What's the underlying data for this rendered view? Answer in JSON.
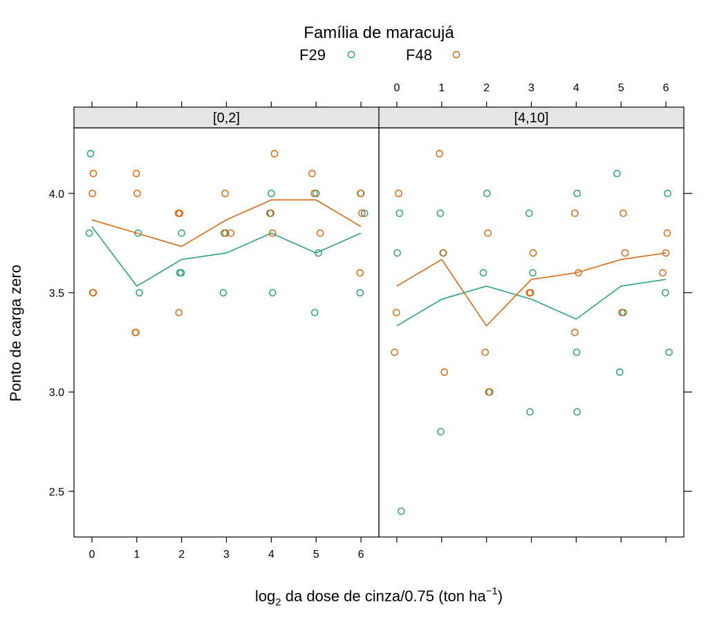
{
  "colors": {
    "F29": "#1b9e77",
    "F48": "#d95f02",
    "strip_bg": "#e5e5e5",
    "frame": "#000000"
  },
  "legend": {
    "title": "Família de maracujá",
    "items": [
      {
        "label": "F29",
        "color": "#1b9e77"
      },
      {
        "label": "F48",
        "color": "#d95f02"
      }
    ]
  },
  "axes": {
    "xlabel_prefix": "log",
    "xlabel_sub": "2",
    "xlabel_main": " da dose de cinza/0.75 (ton ha",
    "xlabel_sup": "−1",
    "xlabel_end": ")",
    "ylabel": "Ponto de carga zero"
  },
  "chart_data": {
    "type": "scatter",
    "xlim": [
      -0.4,
      6.4
    ],
    "ylim": [
      2.27,
      4.33
    ],
    "x_ticks": [
      0,
      1,
      2,
      3,
      4,
      5,
      6
    ],
    "y_ticks": [
      2.5,
      3.0,
      3.5,
      4.0
    ],
    "y_tick_labels": [
      "2.5",
      "3.0",
      "3.5",
      "4.0"
    ],
    "lines": "mean per x value",
    "panels": [
      {
        "label": "[0,2]",
        "series": [
          {
            "name": "F29",
            "points": [
              [
                -0.06,
                3.8
              ],
              [
                -0.03,
                4.2
              ],
              [
                1.03,
                3.8
              ],
              [
                1.06,
                3.5
              ],
              [
                2.0,
                3.8
              ],
              [
                1.96,
                3.6
              ],
              [
                1.99,
                3.6
              ],
              [
                2.93,
                3.5
              ],
              [
                2.98,
                3.8
              ],
              [
                4.0,
                4.0
              ],
              [
                4.03,
                3.5
              ],
              [
                3.99,
                3.9
              ],
              [
                4.97,
                3.4
              ],
              [
                5.0,
                4.0
              ],
              [
                5.05,
                3.7
              ],
              [
                6.0,
                4.0
              ],
              [
                6.08,
                3.9
              ],
              [
                5.98,
                3.5
              ]
            ],
            "line": [
              [
                0,
                3.833
              ],
              [
                1,
                3.533
              ],
              [
                2,
                3.667
              ],
              [
                3,
                3.7
              ],
              [
                4,
                3.8
              ],
              [
                5,
                3.7
              ],
              [
                6,
                3.8
              ]
            ]
          },
          {
            "name": "F48",
            "points": [
              [
                0.03,
                4.1
              ],
              [
                0.01,
                4.0
              ],
              [
                0.03,
                3.5
              ],
              [
                0.02,
                3.5
              ],
              [
                0.99,
                4.1
              ],
              [
                1.01,
                4.0
              ],
              [
                0.97,
                3.3
              ],
              [
                0.98,
                3.3
              ],
              [
                1.93,
                3.9
              ],
              [
                1.96,
                3.9
              ],
              [
                1.94,
                3.4
              ],
              [
                2.97,
                4.0
              ],
              [
                2.95,
                3.8
              ],
              [
                3.1,
                3.8
              ],
              [
                3.97,
                3.9
              ],
              [
                4.07,
                4.2
              ],
              [
                4.03,
                3.8
              ],
              [
                4.91,
                4.1
              ],
              [
                4.96,
                4.0
              ],
              [
                5.09,
                3.8
              ],
              [
                6.02,
                3.9
              ],
              [
                5.98,
                3.6
              ],
              [
                5.99,
                4.0
              ]
            ],
            "line": [
              [
                0,
                3.867
              ],
              [
                1,
                3.8
              ],
              [
                2,
                3.733
              ],
              [
                3,
                3.867
              ],
              [
                4,
                3.967
              ],
              [
                5,
                3.967
              ],
              [
                6,
                3.833
              ]
            ]
          }
        ]
      },
      {
        "label": "[4,10]",
        "series": [
          {
            "name": "F29",
            "points": [
              [
                0.01,
                3.7
              ],
              [
                0.06,
                3.9
              ],
              [
                0.1,
                2.4
              ],
              [
                0.97,
                3.9
              ],
              [
                0.98,
                2.8
              ],
              [
                1.03,
                3.7
              ],
              [
                2.01,
                4.0
              ],
              [
                1.93,
                3.6
              ],
              [
                2.07,
                3.0
              ],
              [
                2.95,
                3.9
              ],
              [
                2.97,
                2.9
              ],
              [
                3.03,
                3.6
              ],
              [
                4.02,
                4.0
              ],
              [
                4.01,
                3.2
              ],
              [
                4.02,
                2.9
              ],
              [
                4.91,
                4.1
              ],
              [
                4.97,
                3.1
              ],
              [
                5.05,
                3.4
              ],
              [
                6.04,
                4.0
              ],
              [
                5.99,
                3.5
              ],
              [
                6.07,
                3.2
              ]
            ],
            "line": [
              [
                0,
                3.333
              ],
              [
                1,
                3.467
              ],
              [
                2,
                3.533
              ],
              [
                3,
                3.467
              ],
              [
                4,
                3.367
              ],
              [
                5,
                3.533
              ],
              [
                6,
                3.567
              ]
            ]
          },
          {
            "name": "F48",
            "points": [
              [
                0.04,
                4.0
              ],
              [
                -0.01,
                3.4
              ],
              [
                -0.05,
                3.2
              ],
              [
                0.95,
                4.2
              ],
              [
                1.06,
                3.1
              ],
              [
                1.04,
                3.7
              ],
              [
                2.03,
                3.8
              ],
              [
                1.97,
                3.2
              ],
              [
                2.05,
                3.0
              ],
              [
                3.04,
                3.7
              ],
              [
                2.98,
                3.5
              ],
              [
                2.96,
                3.5
              ],
              [
                3.97,
                3.9
              ],
              [
                4.05,
                3.6
              ],
              [
                3.97,
                3.3
              ],
              [
                5.05,
                3.9
              ],
              [
                5.02,
                3.4
              ],
              [
                5.09,
                3.7
              ],
              [
                6.03,
                3.8
              ],
              [
                6.0,
                3.7
              ],
              [
                5.93,
                3.6
              ]
            ],
            "line": [
              [
                0,
                3.533
              ],
              [
                1,
                3.667
              ],
              [
                2,
                3.333
              ],
              [
                3,
                3.567
              ],
              [
                4,
                3.6
              ],
              [
                5,
                3.667
              ],
              [
                6,
                3.7
              ]
            ]
          }
        ]
      }
    ]
  }
}
